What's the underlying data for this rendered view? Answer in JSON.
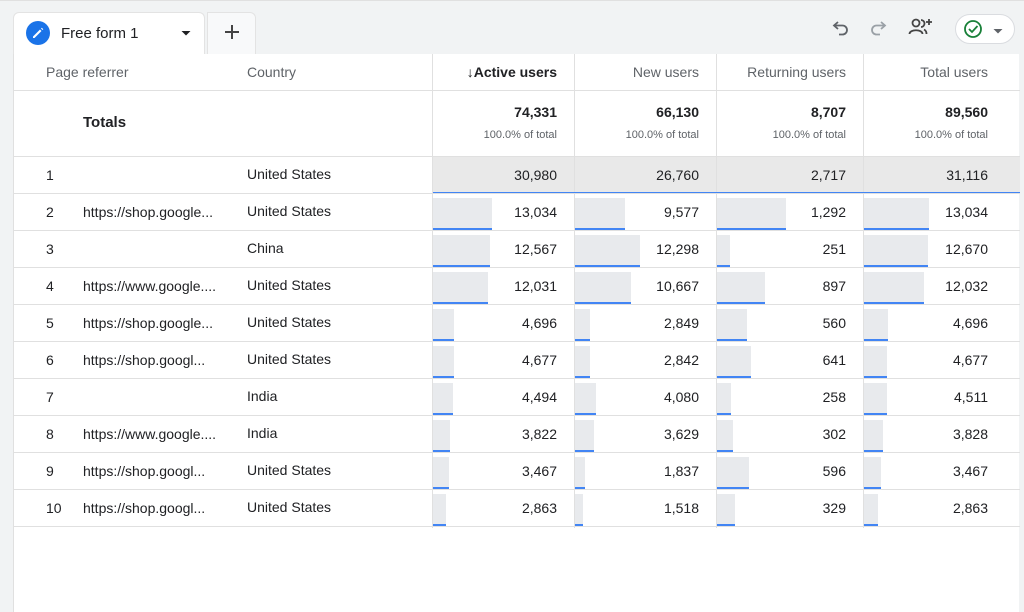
{
  "tabs": {
    "active_label": "Free form 1"
  },
  "columns": {
    "page_referrer": "Page referrer",
    "country": "Country",
    "active_users": "↓Active users",
    "new_users": "New users",
    "returning_users": "Returning users",
    "total_users": "Total users"
  },
  "totals": {
    "label": "Totals",
    "active_users": "74,331",
    "new_users": "66,130",
    "returning_users": "8,707",
    "total_users": "89,560",
    "pct": "100.0% of total"
  },
  "rows": [
    {
      "index": "1",
      "referrer": "",
      "country": "United States",
      "active_users": "30,980",
      "new_users": "26,760",
      "returning_users": "2,717",
      "total_users": "31,116"
    },
    {
      "index": "2",
      "referrer": "https://shop.google...",
      "country": "United States",
      "active_users": "13,034",
      "new_users": "9,577",
      "returning_users": "1,292",
      "total_users": "13,034"
    },
    {
      "index": "3",
      "referrer": "",
      "country": "China",
      "active_users": "12,567",
      "new_users": "12,298",
      "returning_users": "251",
      "total_users": "12,670"
    },
    {
      "index": "4",
      "referrer": "https://www.google....",
      "country": "United States",
      "active_users": "12,031",
      "new_users": "10,667",
      "returning_users": "897",
      "total_users": "12,032"
    },
    {
      "index": "5",
      "referrer": "https://shop.google...",
      "country": "United States",
      "active_users": "4,696",
      "new_users": "2,849",
      "returning_users": "560",
      "total_users": "4,696"
    },
    {
      "index": "6",
      "referrer": "https://shop.googl...",
      "country": "United States",
      "active_users": "4,677",
      "new_users": "2,842",
      "returning_users": "641",
      "total_users": "4,677"
    },
    {
      "index": "7",
      "referrer": "",
      "country": "India",
      "active_users": "4,494",
      "new_users": "4,080",
      "returning_users": "258",
      "total_users": "4,511"
    },
    {
      "index": "8",
      "referrer": "https://www.google....",
      "country": "India",
      "active_users": "3,822",
      "new_users": "3,629",
      "returning_users": "302",
      "total_users": "3,828"
    },
    {
      "index": "9",
      "referrer": "https://shop.googl...",
      "country": "United States",
      "active_users": "3,467",
      "new_users": "1,837",
      "returning_users": "596",
      "total_users": "3,467"
    },
    {
      "index": "10",
      "referrer": "https://shop.googl...",
      "country": "United States",
      "active_users": "2,863",
      "new_users": "1,518",
      "returning_users": "329",
      "total_users": "2,863"
    }
  ],
  "colors": {
    "accent": "#1a73e8",
    "bar_line": "#4285f4",
    "bar_fill": "#e8eaed",
    "status_ok": "#188038"
  },
  "icons": [
    "edit-icon",
    "caret-down-icon",
    "plus-icon",
    "undo-icon",
    "redo-icon",
    "share-icon",
    "check-circle-icon"
  ]
}
